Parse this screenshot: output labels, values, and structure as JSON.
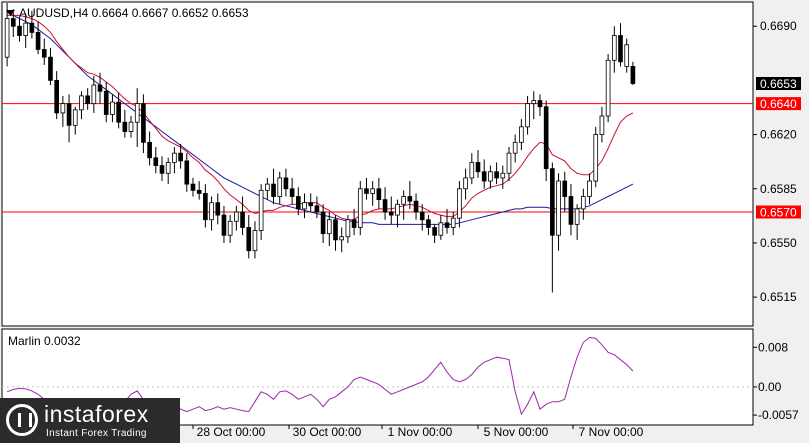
{
  "header": {
    "symbol_line": "AUDUSD,H4  0.6664 0.6667 0.6652 0.6653"
  },
  "price_axis": {
    "ticks": [
      "0.6690",
      "0.6620",
      "0.6585",
      "0.6550",
      "0.6515"
    ]
  },
  "lines": {
    "upper_level_label": "0.6640",
    "lower_level_label": "0.6570",
    "current_price_label": "0.6653",
    "level_color": "#ff0000",
    "current_label_bg": "#000000"
  },
  "indicator": {
    "label": "Marlin 0.0032",
    "ticks": [
      "0.008",
      "0.00",
      "-0.0057"
    ],
    "color": "#9a2aa8"
  },
  "time_axis": {
    "labels": [
      "28 Oct 00:00",
      "30 Oct 00:00",
      "1 Nov 00:00",
      "5 Nov 00:00",
      "7 Nov 00:00"
    ]
  },
  "watermark": {
    "name": "instaforex",
    "tagline": "Instant Forex Trading",
    "icon": "instaforex-logo-icon"
  },
  "chart_data": {
    "type": "candlestick",
    "symbol": "AUDUSD",
    "timeframe": "H4",
    "ylim": [
      0.6497,
      0.6705
    ],
    "levels": [
      0.664,
      0.657
    ],
    "current_price": 0.6653,
    "ohlc": [
      [
        0.667,
        0.6705,
        0.6664,
        0.6695
      ],
      [
        0.6695,
        0.6701,
        0.6683,
        0.669
      ],
      [
        0.669,
        0.6696,
        0.668,
        0.6684
      ],
      [
        0.6684,
        0.6698,
        0.6676,
        0.6692
      ],
      [
        0.6692,
        0.67,
        0.6682,
        0.6686
      ],
      [
        0.6686,
        0.6693,
        0.6672,
        0.6675
      ],
      [
        0.6675,
        0.6682,
        0.6665,
        0.667
      ],
      [
        0.667,
        0.6676,
        0.6652,
        0.6655
      ],
      [
        0.6655,
        0.6661,
        0.663,
        0.6634
      ],
      [
        0.6634,
        0.6645,
        0.6625,
        0.664
      ],
      [
        0.664,
        0.6646,
        0.6615,
        0.6626
      ],
      [
        0.6626,
        0.6638,
        0.662,
        0.6636
      ],
      [
        0.6636,
        0.6648,
        0.663,
        0.6645
      ],
      [
        0.6645,
        0.665,
        0.6636,
        0.664
      ],
      [
        0.664,
        0.6658,
        0.6634,
        0.6652
      ],
      [
        0.6652,
        0.666,
        0.664,
        0.6648
      ],
      [
        0.6648,
        0.6654,
        0.6628,
        0.6633
      ],
      [
        0.6633,
        0.6646,
        0.6628,
        0.6641
      ],
      [
        0.6641,
        0.6647,
        0.6624,
        0.6628
      ],
      [
        0.6628,
        0.6636,
        0.6618,
        0.6622
      ],
      [
        0.6622,
        0.6632,
        0.6618,
        0.6628
      ],
      [
        0.6628,
        0.665,
        0.6612,
        0.664
      ],
      [
        0.664,
        0.6646,
        0.6608,
        0.6615
      ],
      [
        0.6615,
        0.6622,
        0.66,
        0.6605
      ],
      [
        0.6605,
        0.6612,
        0.6595,
        0.66
      ],
      [
        0.66,
        0.6606,
        0.659,
        0.6595
      ],
      [
        0.6595,
        0.6605,
        0.6588,
        0.6602
      ],
      [
        0.6602,
        0.6612,
        0.6595,
        0.6608
      ],
      [
        0.6608,
        0.6614,
        0.6598,
        0.6603
      ],
      [
        0.6603,
        0.6608,
        0.6583,
        0.6588
      ],
      [
        0.6588,
        0.6592,
        0.658,
        0.6584
      ],
      [
        0.6584,
        0.659,
        0.6578,
        0.6582
      ],
      [
        0.6582,
        0.6588,
        0.656,
        0.6565
      ],
      [
        0.6565,
        0.658,
        0.6558,
        0.6576
      ],
      [
        0.6576,
        0.6582,
        0.6562,
        0.6568
      ],
      [
        0.6568,
        0.6574,
        0.655,
        0.6555
      ],
      [
        0.6555,
        0.6568,
        0.655,
        0.6564
      ],
      [
        0.6564,
        0.6574,
        0.6558,
        0.657
      ],
      [
        0.657,
        0.658,
        0.6555,
        0.656
      ],
      [
        0.656,
        0.6568,
        0.654,
        0.6545
      ],
      [
        0.6545,
        0.6564,
        0.654,
        0.6558
      ],
      [
        0.6558,
        0.6588,
        0.6552,
        0.6584
      ],
      [
        0.6584,
        0.6592,
        0.6578,
        0.6588
      ],
      [
        0.6588,
        0.6598,
        0.6575,
        0.658
      ],
      [
        0.658,
        0.6596,
        0.6575,
        0.6592
      ],
      [
        0.6592,
        0.6598,
        0.658,
        0.6585
      ],
      [
        0.6585,
        0.6592,
        0.6575,
        0.658
      ],
      [
        0.658,
        0.6586,
        0.6568,
        0.6572
      ],
      [
        0.6572,
        0.6582,
        0.6566,
        0.6576
      ],
      [
        0.6576,
        0.6582,
        0.657,
        0.6574
      ],
      [
        0.6574,
        0.658,
        0.6566,
        0.657
      ],
      [
        0.657,
        0.6575,
        0.655,
        0.6556
      ],
      [
        0.6556,
        0.657,
        0.6548,
        0.6565
      ],
      [
        0.6565,
        0.6568,
        0.6545,
        0.6552
      ],
      [
        0.6552,
        0.656,
        0.6544,
        0.6554
      ],
      [
        0.6554,
        0.6568,
        0.655,
        0.6565
      ],
      [
        0.6565,
        0.6572,
        0.6555,
        0.656
      ],
      [
        0.656,
        0.659,
        0.6555,
        0.6585
      ],
      [
        0.6585,
        0.6592,
        0.6578,
        0.6582
      ],
      [
        0.6582,
        0.659,
        0.6574,
        0.6585
      ],
      [
        0.6585,
        0.6592,
        0.6572,
        0.6578
      ],
      [
        0.6578,
        0.6586,
        0.6565,
        0.657
      ],
      [
        0.657,
        0.658,
        0.6562,
        0.6568
      ],
      [
        0.6568,
        0.6578,
        0.656,
        0.6575
      ],
      [
        0.6575,
        0.6584,
        0.6565,
        0.658
      ],
      [
        0.658,
        0.659,
        0.6572,
        0.6577
      ],
      [
        0.6577,
        0.6582,
        0.6565,
        0.657
      ],
      [
        0.657,
        0.6575,
        0.6558,
        0.6565
      ],
      [
        0.6565,
        0.6568,
        0.6555,
        0.656
      ],
      [
        0.656,
        0.6562,
        0.655,
        0.6555
      ],
      [
        0.6555,
        0.6568,
        0.6552,
        0.6563
      ],
      [
        0.6563,
        0.6572,
        0.6556,
        0.656
      ],
      [
        0.656,
        0.657,
        0.6555,
        0.6566
      ],
      [
        0.6566,
        0.659,
        0.656,
        0.6585
      ],
      [
        0.6585,
        0.6598,
        0.6578,
        0.6592
      ],
      [
        0.6592,
        0.6608,
        0.6588,
        0.6602
      ],
      [
        0.6602,
        0.661,
        0.6592,
        0.6596
      ],
      [
        0.6596,
        0.6604,
        0.6585,
        0.659
      ],
      [
        0.659,
        0.66,
        0.6585,
        0.6596
      ],
      [
        0.6596,
        0.6602,
        0.6588,
        0.6592
      ],
      [
        0.6592,
        0.66,
        0.6585,
        0.6595
      ],
      [
        0.6595,
        0.6612,
        0.659,
        0.6608
      ],
      [
        0.6608,
        0.662,
        0.6602,
        0.6615
      ],
      [
        0.6615,
        0.663,
        0.661,
        0.6625
      ],
      [
        0.6625,
        0.6645,
        0.662,
        0.664
      ],
      [
        0.664,
        0.6648,
        0.663,
        0.6642
      ],
      [
        0.6642,
        0.6646,
        0.6632,
        0.6638
      ],
      [
        0.6638,
        0.6642,
        0.659,
        0.6598
      ],
      [
        0.6598,
        0.6602,
        0.6518,
        0.6555
      ],
      [
        0.6555,
        0.6595,
        0.6545,
        0.659
      ],
      [
        0.659,
        0.6596,
        0.657,
        0.658
      ],
      [
        0.658,
        0.6588,
        0.6555,
        0.6562
      ],
      [
        0.6562,
        0.6575,
        0.6552,
        0.6572
      ],
      [
        0.6572,
        0.6585,
        0.6565,
        0.658
      ],
      [
        0.658,
        0.6595,
        0.6575,
        0.659
      ],
      [
        0.659,
        0.6625,
        0.6586,
        0.662
      ],
      [
        0.662,
        0.6638,
        0.6615,
        0.6632
      ],
      [
        0.6632,
        0.6672,
        0.6628,
        0.6668
      ],
      [
        0.6668,
        0.669,
        0.666,
        0.6684
      ],
      [
        0.6684,
        0.6692,
        0.6664,
        0.6667
      ],
      [
        0.6664,
        0.6682,
        0.666,
        0.6678
      ],
      [
        0.6664,
        0.6667,
        0.6652,
        0.6653
      ]
    ],
    "ma_fast": [
      0.6697,
      0.6697,
      0.6697,
      0.6696,
      0.6695,
      0.6693,
      0.669,
      0.6686,
      0.668,
      0.6675,
      0.667,
      0.6666,
      0.6663,
      0.666,
      0.6659,
      0.6657,
      0.6654,
      0.6651,
      0.6647,
      0.6643,
      0.664,
      0.6638,
      0.6634,
      0.6629,
      0.6624,
      0.6619,
      0.6616,
      0.6614,
      0.6612,
      0.6609,
      0.6605,
      0.6602,
      0.6597,
      0.6594,
      0.659,
      0.6585,
      0.6581,
      0.6578,
      0.6575,
      0.6571,
      0.6569,
      0.657,
      0.6571,
      0.6571,
      0.6573,
      0.6574,
      0.6575,
      0.6575,
      0.6576,
      0.6576,
      0.6576,
      0.6573,
      0.6571,
      0.6568,
      0.6566,
      0.6565,
      0.6565,
      0.6568,
      0.6569,
      0.6571,
      0.6572,
      0.6572,
      0.6572,
      0.6573,
      0.6574,
      0.6575,
      0.6574,
      0.6573,
      0.6571,
      0.6569,
      0.6568,
      0.6567,
      0.6567,
      0.657,
      0.6574,
      0.6579,
      0.6582,
      0.6584,
      0.6586,
      0.6587,
      0.6588,
      0.6591,
      0.6595,
      0.66,
      0.6606,
      0.6611,
      0.6615,
      0.6614,
      0.6607,
      0.6605,
      0.6603,
      0.6598,
      0.6595,
      0.6594,
      0.6594,
      0.6598,
      0.6603,
      0.6611,
      0.662,
      0.6628,
      0.6632,
      0.6634
    ],
    "ma_slow": [
      0.6699,
      0.6697,
      0.6695,
      0.6693,
      0.6691,
      0.6688,
      0.6685,
      0.6682,
      0.6678,
      0.6674,
      0.667,
      0.6666,
      0.6662,
      0.6658,
      0.6655,
      0.6652,
      0.6649,
      0.6646,
      0.6643,
      0.664,
      0.6637,
      0.6634,
      0.6631,
      0.6628,
      0.6625,
      0.6622,
      0.6619,
      0.6616,
      0.6613,
      0.661,
      0.6607,
      0.6604,
      0.6601,
      0.6598,
      0.6595,
      0.6592,
      0.659,
      0.6588,
      0.6586,
      0.6584,
      0.6582,
      0.658,
      0.6578,
      0.6576,
      0.6575,
      0.6574,
      0.6573,
      0.6572,
      0.6571,
      0.657,
      0.6569,
      0.6568,
      0.6567,
      0.6566,
      0.6565,
      0.6564,
      0.6564,
      0.6563,
      0.6563,
      0.6563,
      0.6562,
      0.6562,
      0.6562,
      0.6562,
      0.6562,
      0.6562,
      0.6562,
      0.6562,
      0.6562,
      0.6562,
      0.6562,
      0.6562,
      0.6562,
      0.6563,
      0.6564,
      0.6565,
      0.6566,
      0.6567,
      0.6568,
      0.6569,
      0.657,
      0.6571,
      0.6572,
      0.6572,
      0.6573,
      0.6573,
      0.6573,
      0.6573,
      0.6572,
      0.6572,
      0.6572,
      0.6572,
      0.6572,
      0.6573,
      0.6574,
      0.6576,
      0.6578,
      0.658,
      0.6582,
      0.6584,
      0.6586,
      0.6588
    ],
    "indicator_ylim": [
      -0.0075,
      0.0115
    ],
    "indicator_values": [
      -0.001,
      -0.0005,
      -0.0003,
      -0.0004,
      -0.0008,
      -0.0015,
      -0.0025,
      -0.004,
      -0.005,
      -0.0055,
      -0.005,
      -0.004,
      -0.003,
      -0.0025,
      -0.003,
      -0.0045,
      -0.004,
      -0.0035,
      -0.0038,
      -0.003,
      -0.0015,
      -0.0008,
      -0.0025,
      -0.0045,
      -0.0048,
      -0.004,
      -0.003,
      -0.0032,
      -0.0045,
      -0.005,
      -0.0045,
      -0.004,
      -0.0048,
      -0.0045,
      -0.004,
      -0.0045,
      -0.0042,
      -0.0045,
      -0.0048,
      -0.005,
      -0.003,
      -0.001,
      -0.0015,
      -0.0025,
      -0.001,
      -0.0008,
      -0.0015,
      -0.0025,
      -0.002,
      -0.0015,
      -0.0025,
      -0.004,
      -0.0025,
      -0.002,
      -0.001,
      0.0,
      0.0015,
      0.002,
      0.0015,
      0.001,
      0.0005,
      -0.0005,
      -0.0015,
      -0.001,
      -0.0005,
      0.0,
      0.0005,
      0.001,
      0.002,
      0.0035,
      0.005,
      0.003,
      0.0015,
      0.001,
      0.0015,
      0.0025,
      0.004,
      0.005,
      0.0055,
      0.006,
      0.0058,
      0.0055,
      -0.001,
      -0.0055,
      -0.0035,
      -0.001,
      -0.0045,
      -0.0035,
      -0.003,
      -0.003,
      -0.0025,
      0.002,
      0.006,
      0.009,
      0.01,
      0.0098,
      0.0085,
      0.007,
      0.0065,
      0.0055,
      0.0045,
      0.0032
    ]
  }
}
